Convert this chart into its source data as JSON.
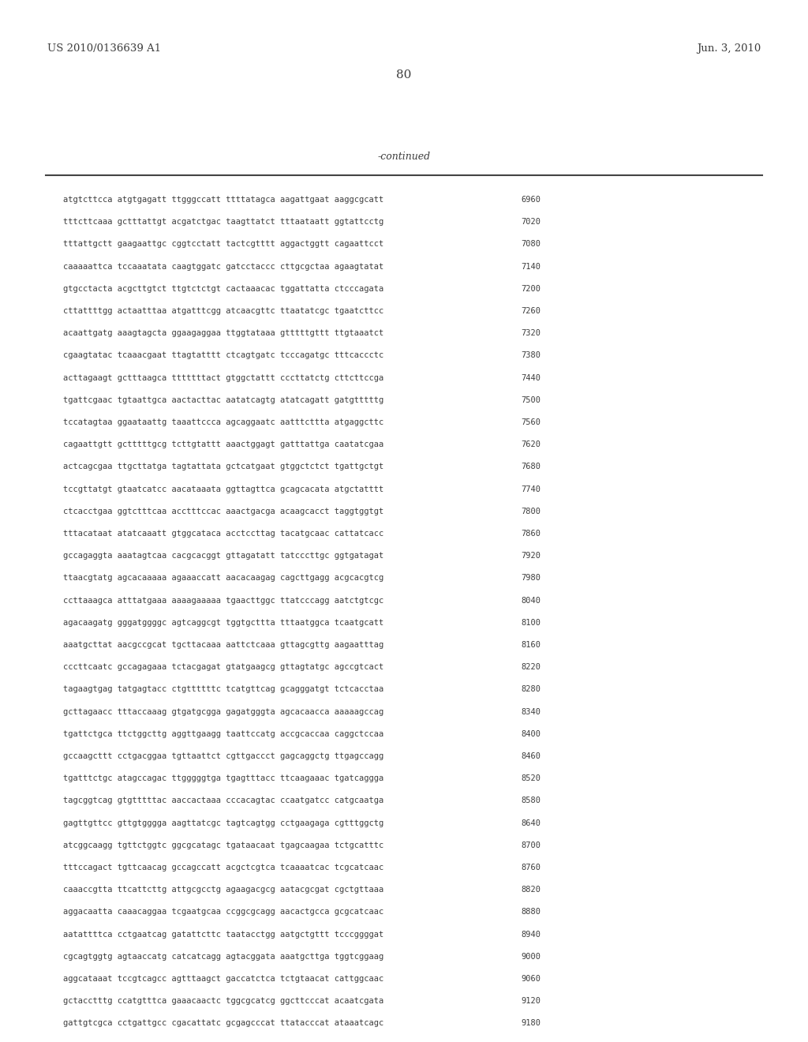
{
  "header_left": "US 2010/0136639 A1",
  "header_right": "Jun. 3, 2010",
  "page_number": "80",
  "continued_label": "-continued",
  "bg_color": "#ffffff",
  "text_color": "#3d3d3d",
  "lines": [
    [
      "atgtcttcca atgtgagatt ttgggccatt ttttatagca aagattgaat aaggcgcatt",
      "6960"
    ],
    [
      "tttcttcaaa gctttattgt acgatctgac taagttatct tttaataatt ggtattcctg",
      "7020"
    ],
    [
      "tttattgctt gaagaattgc cggtcctatt tactcgtttt aggactggtt cagaattcct",
      "7080"
    ],
    [
      "caaaaattca tccaaatata caagtggatc gatcctaccc cttgcgctaa agaagtatat",
      "7140"
    ],
    [
      "gtgcctacta acgcttgtct ttgtctctgt cactaaacac tggattatta ctcccagata",
      "7200"
    ],
    [
      "cttattttgg actaatttaa atgatttcgg atcaacgttc ttaatatcgc tgaatcttcc",
      "7260"
    ],
    [
      "acaattgatg aaagtagcta ggaagaggaa ttggtataaa gtttttgttt ttgtaaatct",
      "7320"
    ],
    [
      "cgaagtatac tcaaacgaat ttagtatttt ctcagtgatc tcccagatgc tttcaccctc",
      "7380"
    ],
    [
      "acttagaagt gctttaagca tttttttact gtggctattt cccttatctg cttcttccga",
      "7440"
    ],
    [
      "tgattcgaac tgtaattgca aactacttac aatatcagtg atatcagatt gatgtttttg",
      "7500"
    ],
    [
      "tccatagtaa ggaataattg taaattccca agcaggaatc aatttcttta atgaggcttc",
      "7560"
    ],
    [
      "cagaattgtt gctttttgcg tcttgtattt aaactggagt gatttattga caatatcgaa",
      "7620"
    ],
    [
      "actcagcgaa ttgcttatga tagtattata gctcatgaat gtggctctct tgattgctgt",
      "7680"
    ],
    [
      "tccgttatgt gtaatcatcc aacataaata ggttagttca gcagcacata atgctatttt",
      "7740"
    ],
    [
      "ctcacctgaa ggtctttcaa acctttccac aaactgacga acaagcacct taggtggtgt",
      "7800"
    ],
    [
      "tttacataat atatcaaatt gtggcataca acctccttag tacatgcaac cattatcacc",
      "7860"
    ],
    [
      "gccagaggta aaatagtcaa cacgcacggt gttagatatt tatcccttgc ggtgatagat",
      "7920"
    ],
    [
      "ttaacgtatg agcacaaaaa agaaaccatt aacacaagag cagcttgagg acgcacgtcg",
      "7980"
    ],
    [
      "ccttaaagca atttatgaaa aaaagaaaaa tgaacttggc ttatcccagg aatctgtcgc",
      "8040"
    ],
    [
      "agacaagatg gggatggggc agtcaggcgt tggtgcttta tttaatggca tcaatgcatt",
      "8100"
    ],
    [
      "aaatgcttat aacgccgcat tgcttacaaa aattctcaaa gttagcgttg aagaatttag",
      "8160"
    ],
    [
      "cccttcaatc gccagagaaa tctacgagat gtatgaagcg gttagtatgc agccgtcact",
      "8220"
    ],
    [
      "tagaagtgag tatgagtacc ctgttttttc tcatgttcag gcagggatgt tctcacctaa",
      "8280"
    ],
    [
      "gcttagaacc tttaccaaag gtgatgcgga gagatgggta agcacaacca aaaaagccag",
      "8340"
    ],
    [
      "tgattctgca ttctggcttg aggttgaagg taattccatg accgcaccaa caggctccaa",
      "8400"
    ],
    [
      "gccaagcttt cctgacggaa tgttaattct cgttgaccct gagcaggctg ttgagccagg",
      "8460"
    ],
    [
      "tgatttctgc atagccagac ttgggggtga tgagtttacc ttcaagaaac tgatcaggga",
      "8520"
    ],
    [
      "tagcggtcag gtgtttttac aaccactaaa cccacagtac ccaatgatcc catgcaatga",
      "8580"
    ],
    [
      "gagttgttcc gttgtgggga aagttatcgc tagtcagtgg cctgaagaga cgtttggctg",
      "8640"
    ],
    [
      "atcggcaagg tgttctggtc ggcgcatagc tgataacaat tgagcaagaa tctgcatttc",
      "8700"
    ],
    [
      "tttccagact tgttcaacag gccagccatt acgctcgtca tcaaaatcac tcgcatcaac",
      "8760"
    ],
    [
      "caaaccgtta ttcattcttg attgcgcctg agaagacgcg aatacgcgat cgctgttaaa",
      "8820"
    ],
    [
      "aggacaatta caaacaggaa tcgaatgcaa ccggcgcagg aacactgcca gcgcatcaac",
      "8880"
    ],
    [
      "aatattttca cctgaatcag gatattcttc taatacctgg aatgctgttt tcccggggat",
      "8940"
    ],
    [
      "cgcagtggtg agtaaccatg catcatcagg agtacggata aaatgcttga tggtcggaag",
      "9000"
    ],
    [
      "aggcataaat tccgtcagcc agtttaagct gaccatctca tctgtaacat cattggcaac",
      "9060"
    ],
    [
      "gctacctttg ccatgtttca gaaacaactc tggcgcatcg ggcttcccat acaatcgata",
      "9120"
    ],
    [
      "gattgtcgca cctgattgcc cgacattatc gcgagcccat ttatacccat ataaatcagc",
      "9180"
    ]
  ]
}
